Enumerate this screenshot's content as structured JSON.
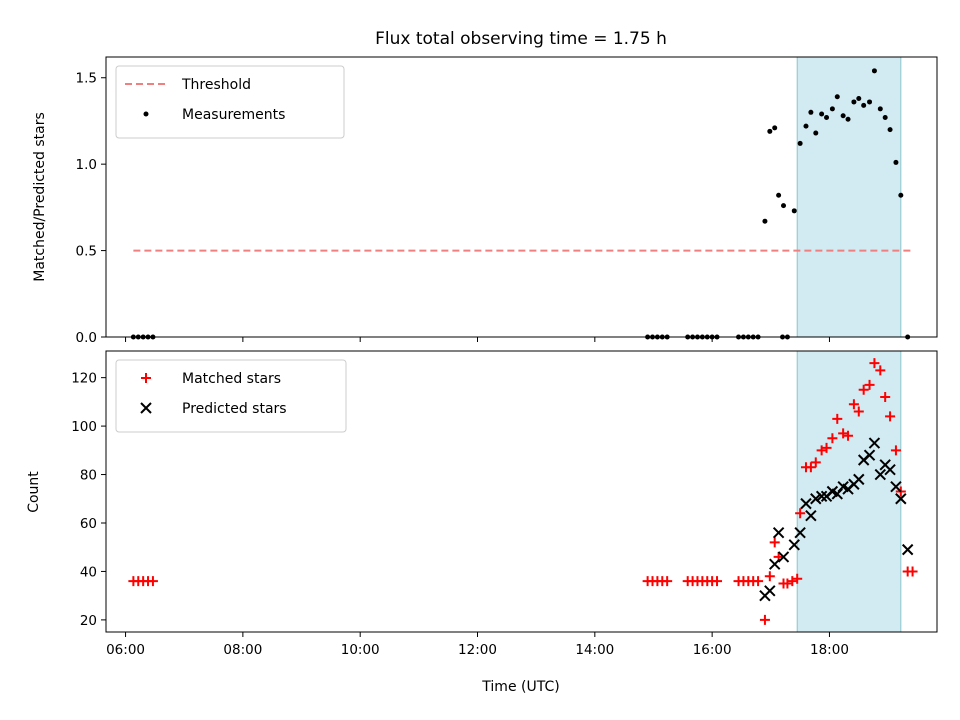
{
  "chart_data": [
    {
      "type": "scatter",
      "title": "Flux total observing time = 1.75 h",
      "xlabel": "",
      "ylabel": "Matched/Predicted stars",
      "xlim": [
        "05:40",
        "19:50"
      ],
      "ylim": [
        0,
        1.62
      ],
      "yticks": [
        "0.0",
        "0.5",
        "1.0",
        "1.5"
      ],
      "legend_position": "top-left",
      "highlight_span": [
        "17:27",
        "19:13"
      ],
      "highlight_color": "#add8e6",
      "threshold": {
        "name": "Threshold",
        "value": 0.5,
        "x_range": [
          "06:08",
          "19:23"
        ],
        "color": "#f08080"
      },
      "series": [
        {
          "name": "Measurements",
          "color": "#000000",
          "points": [
            [
              "06:08",
              0
            ],
            [
              "06:13",
              0
            ],
            [
              "06:18",
              0
            ],
            [
              "06:23",
              0
            ],
            [
              "06:28",
              0
            ],
            [
              "14:54",
              0
            ],
            [
              "14:59",
              0
            ],
            [
              "15:04",
              0
            ],
            [
              "15:09",
              0
            ],
            [
              "15:14",
              0
            ],
            [
              "15:35",
              0
            ],
            [
              "15:40",
              0
            ],
            [
              "15:45",
              0
            ],
            [
              "15:50",
              0
            ],
            [
              "15:55",
              0
            ],
            [
              "16:00",
              0
            ],
            [
              "16:05",
              0
            ],
            [
              "16:27",
              0
            ],
            [
              "16:32",
              0
            ],
            [
              "16:37",
              0
            ],
            [
              "16:42",
              0
            ],
            [
              "16:47",
              0
            ],
            [
              "17:12",
              0
            ],
            [
              "17:17",
              0
            ],
            [
              "16:54",
              0.67
            ],
            [
              "16:59",
              1.19
            ],
            [
              "17:04",
              1.21
            ],
            [
              "17:08",
              0.82
            ],
            [
              "17:13",
              0.76
            ],
            [
              "17:24",
              0.73
            ],
            [
              "17:30",
              1.12
            ],
            [
              "17:36",
              1.22
            ],
            [
              "17:41",
              1.3
            ],
            [
              "17:46",
              1.18
            ],
            [
              "17:52",
              1.29
            ],
            [
              "17:57",
              1.27
            ],
            [
              "18:03",
              1.32
            ],
            [
              "18:08",
              1.39
            ],
            [
              "18:14",
              1.28
            ],
            [
              "18:19",
              1.26
            ],
            [
              "18:25",
              1.36
            ],
            [
              "18:30",
              1.38
            ],
            [
              "18:35",
              1.34
            ],
            [
              "18:41",
              1.36
            ],
            [
              "18:46",
              1.54
            ],
            [
              "18:52",
              1.32
            ],
            [
              "18:57",
              1.27
            ],
            [
              "19:02",
              1.2
            ],
            [
              "19:08",
              1.01
            ],
            [
              "19:13",
              0.82
            ],
            [
              "19:20",
              0
            ]
          ]
        }
      ]
    },
    {
      "type": "scatter",
      "title": "",
      "xlabel": "Time (UTC)",
      "ylabel": "Count",
      "xlim": [
        "05:40",
        "19:50"
      ],
      "ylim": [
        15,
        131
      ],
      "xticks": [
        "06:00",
        "08:00",
        "10:00",
        "12:00",
        "14:00",
        "16:00",
        "18:00"
      ],
      "yticks": [
        "20",
        "40",
        "60",
        "80",
        "100",
        "120"
      ],
      "legend_position": "top-left",
      "highlight_span": [
        "17:27",
        "19:13"
      ],
      "highlight_color": "#add8e6",
      "series": [
        {
          "name": "Matched stars",
          "color": "#ff0000",
          "marker": "plus",
          "points": [
            [
              "06:08",
              36
            ],
            [
              "06:13",
              36
            ],
            [
              "06:18",
              36
            ],
            [
              "06:23",
              36
            ],
            [
              "06:28",
              36
            ],
            [
              "14:54",
              36
            ],
            [
              "14:59",
              36
            ],
            [
              "15:04",
              36
            ],
            [
              "15:09",
              36
            ],
            [
              "15:14",
              36
            ],
            [
              "15:35",
              36
            ],
            [
              "15:40",
              36
            ],
            [
              "15:45",
              36
            ],
            [
              "15:50",
              36
            ],
            [
              "15:55",
              36
            ],
            [
              "16:00",
              36
            ],
            [
              "16:05",
              36
            ],
            [
              "16:27",
              36
            ],
            [
              "16:32",
              36
            ],
            [
              "16:37",
              36
            ],
            [
              "16:42",
              36
            ],
            [
              "16:47",
              36
            ],
            [
              "16:54",
              20
            ],
            [
              "16:59",
              38
            ],
            [
              "17:04",
              52
            ],
            [
              "17:08",
              46
            ],
            [
              "17:13",
              35
            ],
            [
              "17:17",
              35
            ],
            [
              "17:22",
              36
            ],
            [
              "17:27",
              37
            ],
            [
              "17:30",
              64
            ],
            [
              "17:36",
              83
            ],
            [
              "17:41",
              83
            ],
            [
              "17:46",
              85
            ],
            [
              "17:52",
              90
            ],
            [
              "17:57",
              91
            ],
            [
              "18:03",
              95
            ],
            [
              "18:08",
              103
            ],
            [
              "18:14",
              97
            ],
            [
              "18:19",
              96
            ],
            [
              "18:25",
              109
            ],
            [
              "18:30",
              106
            ],
            [
              "18:35",
              115
            ],
            [
              "18:41",
              117
            ],
            [
              "18:46",
              126
            ],
            [
              "18:52",
              123
            ],
            [
              "18:57",
              112
            ],
            [
              "19:02",
              104
            ],
            [
              "19:08",
              90
            ],
            [
              "19:13",
              73
            ],
            [
              "19:20",
              40
            ],
            [
              "19:25",
              40
            ]
          ]
        },
        {
          "name": "Predicted stars",
          "color": "#000000",
          "marker": "x",
          "points": [
            [
              "16:54",
              30
            ],
            [
              "16:59",
              32
            ],
            [
              "17:04",
              43
            ],
            [
              "17:08",
              56
            ],
            [
              "17:13",
              46
            ],
            [
              "17:24",
              51
            ],
            [
              "17:30",
              56
            ],
            [
              "17:36",
              68
            ],
            [
              "17:41",
              63
            ],
            [
              "17:46",
              70
            ],
            [
              "17:52",
              71
            ],
            [
              "17:57",
              71
            ],
            [
              "18:03",
              73
            ],
            [
              "18:08",
              72
            ],
            [
              "18:14",
              75
            ],
            [
              "18:19",
              74
            ],
            [
              "18:25",
              76
            ],
            [
              "18:30",
              78
            ],
            [
              "18:35",
              86
            ],
            [
              "18:41",
              88
            ],
            [
              "18:46",
              93
            ],
            [
              "18:52",
              80
            ],
            [
              "18:57",
              84
            ],
            [
              "19:02",
              82
            ],
            [
              "19:08",
              75
            ],
            [
              "19:13",
              70
            ],
            [
              "19:20",
              49
            ]
          ]
        }
      ]
    }
  ]
}
